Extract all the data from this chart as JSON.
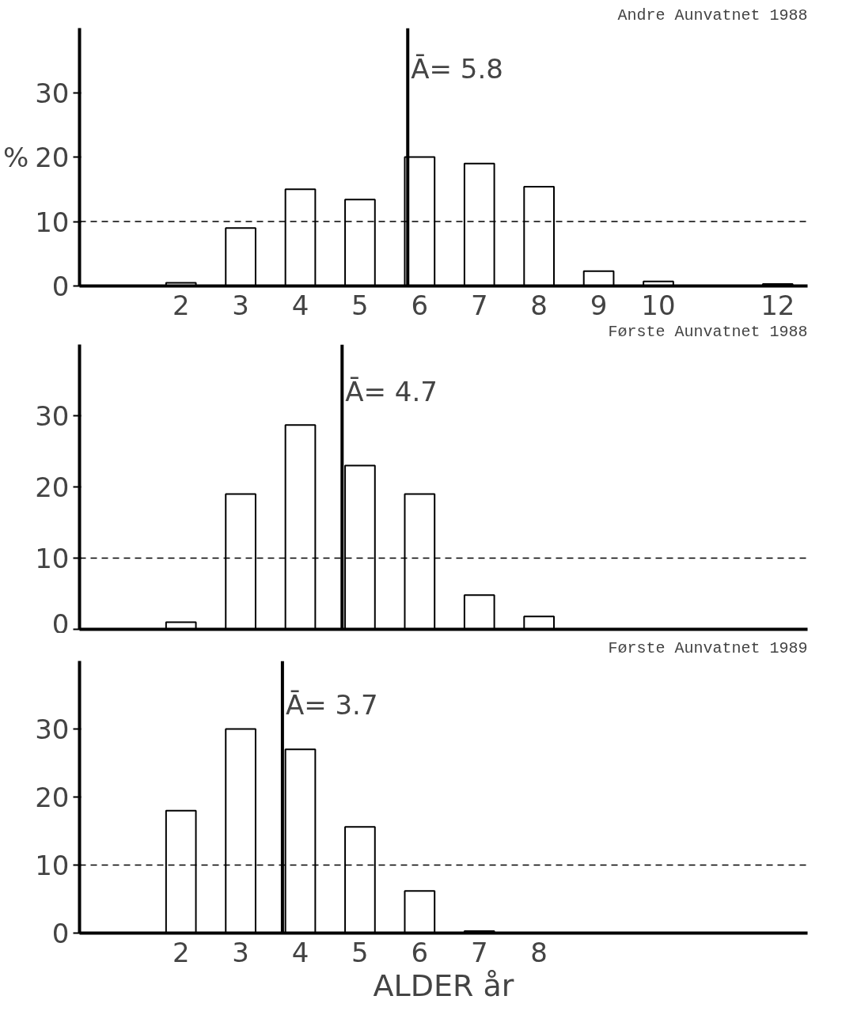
{
  "chart_data": [
    {
      "type": "bar",
      "title": "Andre Aunvatnet 1988",
      "ylabel": "%",
      "x": [
        2,
        3,
        4,
        5,
        6,
        7,
        8,
        9,
        10,
        12
      ],
      "values": [
        0.5,
        9,
        15,
        13.4,
        20,
        19,
        15.4,
        2.3,
        0.7,
        0.3
      ],
      "color": "#ffffff",
      "xlim": [
        0.3,
        12.5
      ],
      "xticks": [
        2,
        3,
        4,
        5,
        6,
        7,
        8,
        9,
        10,
        12
      ],
      "ylim": [
        0,
        40
      ],
      "yticks": [
        0,
        10,
        20,
        30
      ],
      "grid": false,
      "ref_lines": [
        {
          "axis": "y",
          "value": 10,
          "label": null,
          "line_style": "dashed"
        },
        {
          "axis": "x",
          "value": 5.8,
          "label": "Ā= 5.8",
          "line_style": "solid"
        }
      ]
    },
    {
      "type": "bar",
      "title": "Første Aunvatnet 1988",
      "x": [
        2,
        3,
        4,
        5,
        6,
        7,
        8
      ],
      "values": [
        1,
        19,
        28.7,
        23,
        19,
        4.8,
        1.8
      ],
      "color": "#ffffff",
      "xlim": [
        0.3,
        12.5
      ],
      "ylim": [
        0,
        40
      ],
      "yticks": [
        0,
        10,
        20,
        30
      ],
      "tick_labels": "y",
      "grid": false,
      "ref_lines": [
        {
          "axis": "y",
          "value": 10,
          "label": null,
          "line_style": "dashed"
        },
        {
          "axis": "x",
          "value": 4.7,
          "label": "Ā= 4.7",
          "line_style": "solid"
        }
      ]
    },
    {
      "type": "bar",
      "title": "Første Aunvatnet 1989",
      "xlabel": "ALDER år",
      "x": [
        2,
        3,
        4,
        5,
        6,
        7
      ],
      "values": [
        18,
        30,
        27,
        15.6,
        6.2,
        0.3
      ],
      "color": "#ffffff",
      "xlim": [
        0.3,
        12.5
      ],
      "xticks": [
        2,
        3,
        4,
        5,
        6,
        7,
        8
      ],
      "ylim": [
        0,
        40
      ],
      "yticks": [
        0,
        10,
        20,
        30
      ],
      "grid": false,
      "ref_lines": [
        {
          "axis": "y",
          "value": 10,
          "label": null,
          "line_style": "dashed"
        },
        {
          "axis": "x",
          "value": 3.7,
          "label": "Ā= 3.7",
          "line_style": "solid"
        }
      ]
    }
  ]
}
